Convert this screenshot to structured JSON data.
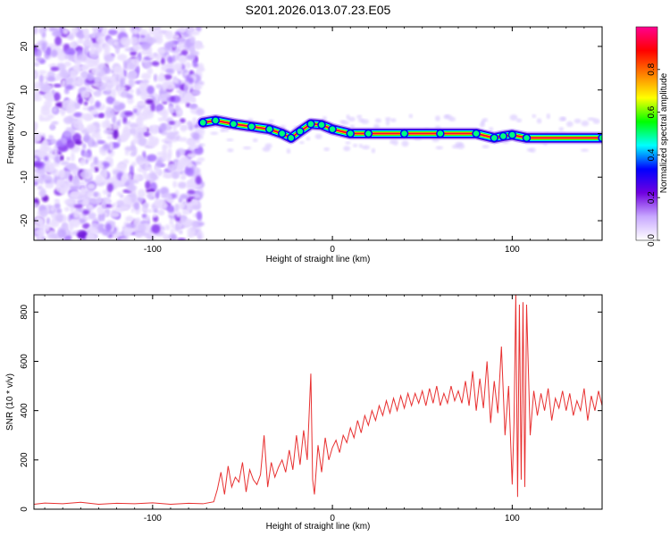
{
  "figure": {
    "title": "S201.2026.013.07.23.E05"
  },
  "chart_data": [
    {
      "type": "heatmap",
      "xlabel": "Height of straight line (km)",
      "ylabel": "Frequency (Hz)",
      "xlim": [
        -166,
        150
      ],
      "ylim": [
        -24.5,
        24.5
      ],
      "xticks": [
        {
          "value": -100,
          "label": "-100"
        },
        {
          "value": 0,
          "label": "0"
        },
        {
          "value": 100,
          "label": "100"
        }
      ],
      "yticks": [
        {
          "value": -20,
          "label": "-20"
        },
        {
          "value": -10,
          "label": "-10"
        },
        {
          "value": 0,
          "label": "0"
        },
        {
          "value": 10,
          "label": "10"
        },
        {
          "value": 20,
          "label": "20"
        }
      ],
      "ridge": [
        {
          "x": -72,
          "y": 2.5
        },
        {
          "x": -65,
          "y": 3.0
        },
        {
          "x": -55,
          "y": 2.2
        },
        {
          "x": -45,
          "y": 1.6
        },
        {
          "x": -35,
          "y": 1.0
        },
        {
          "x": -28,
          "y": 0.0
        },
        {
          "x": -23,
          "y": -1.0
        },
        {
          "x": -18,
          "y": 0.5
        },
        {
          "x": -12,
          "y": 2.2
        },
        {
          "x": -6,
          "y": 2.0
        },
        {
          "x": 0,
          "y": 1.0
        },
        {
          "x": 10,
          "y": 0.0
        },
        {
          "x": 20,
          "y": 0.0
        },
        {
          "x": 40,
          "y": 0.0
        },
        {
          "x": 60,
          "y": 0.0
        },
        {
          "x": 80,
          "y": 0.0
        },
        {
          "x": 90,
          "y": -1.0
        },
        {
          "x": 95,
          "y": -0.6
        },
        {
          "x": 100,
          "y": -0.3
        },
        {
          "x": 108,
          "y": -1.0
        },
        {
          "x": 150,
          "y": -1.0
        }
      ],
      "colorbar": {
        "label": "Normalized spectral amplitude",
        "range": [
          0,
          1
        ],
        "ticks": [
          {
            "value": 0.0,
            "label": "0.0"
          },
          {
            "value": 0.2,
            "label": "0.2"
          },
          {
            "value": 0.4,
            "label": "0.4"
          },
          {
            "value": 0.6,
            "label": "0.6"
          },
          {
            "value": 0.8,
            "label": "0.8"
          }
        ],
        "colors": [
          "#ffffff",
          "#c8a8ff",
          "#7000e0",
          "#0000ff",
          "#00ffff",
          "#00ff00",
          "#ffff00",
          "#ff8000",
          "#ff0000",
          "#ff0090"
        ]
      }
    },
    {
      "type": "line",
      "xlabel": "Height of straight line (km)",
      "ylabel": "SNR (10 * v/v)",
      "xlim": [
        -166,
        150
      ],
      "ylim": [
        0,
        870
      ],
      "xticks": [
        {
          "value": -100,
          "label": "-100"
        },
        {
          "value": 0,
          "label": "0"
        },
        {
          "value": 100,
          "label": "100"
        }
      ],
      "yticks": [
        {
          "value": 0,
          "label": "0"
        },
        {
          "value": 200,
          "label": "200"
        },
        {
          "value": 400,
          "label": "400"
        },
        {
          "value": 600,
          "label": "600"
        },
        {
          "value": 800,
          "label": "800"
        }
      ],
      "color": "#e83030",
      "series": [
        {
          "x": [
            -166,
            -160,
            -150,
            -140,
            -130,
            -120,
            -110,
            -100,
            -90,
            -80,
            -72,
            -66,
            -64,
            -62,
            -60,
            -58,
            -56,
            -54,
            -52,
            -50,
            -48,
            -46,
            -44,
            -42,
            -40,
            -38,
            -36,
            -34,
            -32,
            -30,
            -28,
            -26,
            -24,
            -22,
            -20,
            -18,
            -16,
            -14,
            -12,
            -11,
            -10,
            -8,
            -6,
            -4,
            -2,
            0,
            2,
            4,
            6,
            8,
            10,
            12,
            14,
            16,
            18,
            20,
            22,
            24,
            26,
            28,
            30,
            32,
            34,
            36,
            38,
            40,
            42,
            44,
            46,
            48,
            50,
            52,
            54,
            56,
            58,
            60,
            62,
            64,
            66,
            68,
            70,
            72,
            74,
            76,
            78,
            80,
            82,
            84,
            86,
            88,
            90,
            92,
            94,
            96,
            98,
            100,
            101,
            102,
            103,
            104,
            105,
            106,
            107,
            108,
            110,
            112,
            114,
            116,
            118,
            120,
            122,
            124,
            126,
            128,
            130,
            132,
            134,
            136,
            138,
            140,
            142,
            144,
            146,
            148,
            150
          ],
          "y": [
            20,
            25,
            22,
            28,
            20,
            24,
            22,
            26,
            20,
            24,
            22,
            30,
            80,
            150,
            60,
            175,
            90,
            130,
            110,
            190,
            70,
            160,
            120,
            100,
            140,
            300,
            90,
            190,
            130,
            170,
            200,
            150,
            240,
            160,
            300,
            180,
            320,
            200,
            550,
            120,
            60,
            260,
            150,
            290,
            200,
            250,
            280,
            230,
            300,
            270,
            330,
            290,
            360,
            310,
            380,
            340,
            400,
            360,
            420,
            380,
            440,
            390,
            450,
            400,
            460,
            410,
            470,
            420,
            470,
            430,
            480,
            420,
            490,
            430,
            500,
            420,
            470,
            430,
            500,
            440,
            480,
            430,
            520,
            420,
            560,
            400,
            530,
            410,
            600,
            350,
            520,
            390,
            660,
            300,
            500,
            100,
            350,
            870,
            50,
            830,
            120,
            840,
            90,
            830,
            300,
            480,
            380,
            470,
            400,
            490,
            360,
            450,
            410,
            480,
            400,
            470,
            380,
            440,
            400,
            490,
            360,
            460,
            400,
            480,
            420
          ]
        }
      ]
    }
  ]
}
